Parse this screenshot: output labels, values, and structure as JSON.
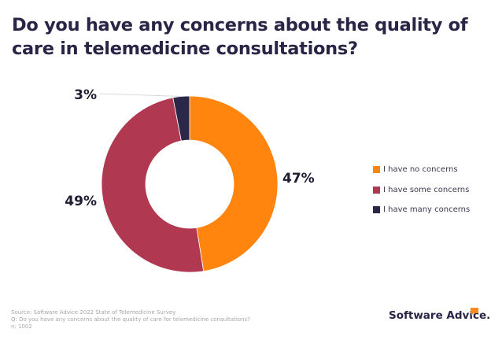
{
  "title": "Do you have any concerns about the quality of care in telemedicine consultations?",
  "chart_data": {
    "type": "pie",
    "donut": true,
    "title": "Do you have any concerns about the quality of care in telemedicine consultations?",
    "categories": [
      "I have no concerns",
      "I have some concerns",
      "I have many concerns"
    ],
    "values": [
      47,
      49,
      3
    ],
    "labels": [
      "47%",
      "49%",
      "3%"
    ],
    "colors": [
      "#ff850f",
      "#b03850",
      "#2b2749"
    ],
    "legend_position": "right"
  },
  "footer": {
    "source": "Source: Software Advice 2022 State of Telemedicine Survey",
    "question": "Q: Do you have any concerns about the quality of care for telemedicine consultations?",
    "n": "n: 1002"
  },
  "logo": "Software Advice."
}
